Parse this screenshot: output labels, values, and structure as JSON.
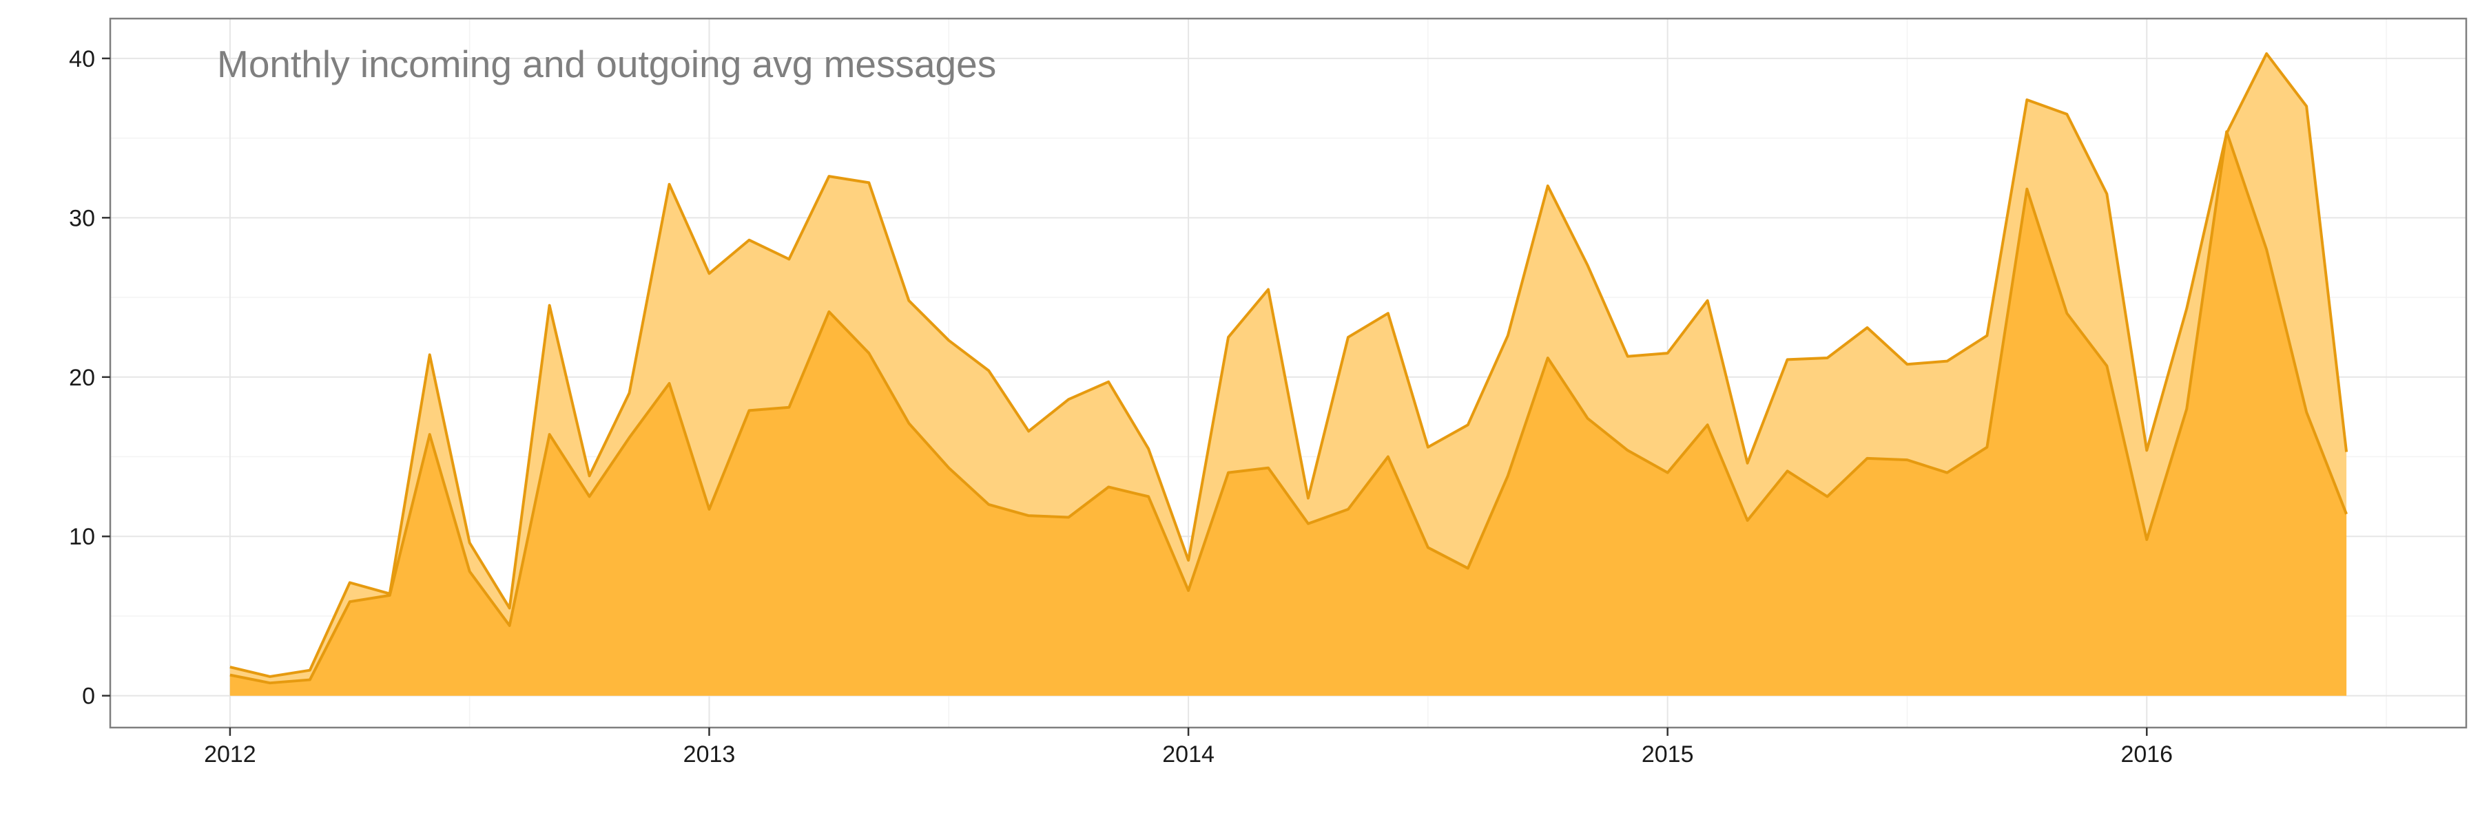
{
  "chart_data": {
    "type": "area",
    "title": "Monthly incoming and outgoing avg messages",
    "xlabel": "",
    "ylabel": "",
    "x_start": "2012-01",
    "x_ticks": [
      "2012",
      "2013",
      "2014",
      "2015",
      "2016"
    ],
    "y_ticks": [
      "0",
      "10",
      "20",
      "30",
      "40"
    ],
    "xlim": [
      "2011-10",
      "2016-09"
    ],
    "ylim": [
      -2,
      42.5
    ],
    "grid": true,
    "legend": "none",
    "series": [
      {
        "values": [
          1.8,
          1.2,
          1.6,
          7.1,
          6.4,
          21.4,
          9.6,
          5.5,
          24.5,
          13.8,
          19.0,
          32.1,
          26.5,
          28.6,
          27.4,
          32.6,
          32.2,
          24.8,
          22.3,
          20.4,
          16.6,
          18.6,
          19.7,
          15.5,
          8.5,
          22.5,
          25.5,
          12.4,
          22.5,
          24.0,
          15.6,
          17.0,
          22.6,
          32.0,
          27.0,
          21.3,
          21.5,
          24.8,
          14.6,
          21.1,
          21.2,
          23.1,
          20.8,
          21.0,
          22.6,
          37.4,
          36.5,
          31.5,
          15.4,
          24.3,
          35.3,
          40.3,
          37.0,
          15.3
        ],
        "color": "#ffd27f"
      },
      {
        "values": [
          1.3,
          0.8,
          1.0,
          5.9,
          6.3,
          16.4,
          7.8,
          4.4,
          16.4,
          12.5,
          16.2,
          19.6,
          11.7,
          17.9,
          18.1,
          24.1,
          21.5,
          17.1,
          14.3,
          12.0,
          11.3,
          11.2,
          13.1,
          12.5,
          6.6,
          14.0,
          14.3,
          10.8,
          11.7,
          15.0,
          9.3,
          8.0,
          13.8,
          21.2,
          17.4,
          15.4,
          14.0,
          17.0,
          11.0,
          14.1,
          12.5,
          14.9,
          14.8,
          14.0,
          15.6,
          31.8,
          24.0,
          20.7,
          9.8,
          18.0,
          35.4,
          28.0,
          17.8,
          11.4
        ],
        "color": "#ffb83c"
      }
    ],
    "stroke_color": "#e69a0f"
  }
}
